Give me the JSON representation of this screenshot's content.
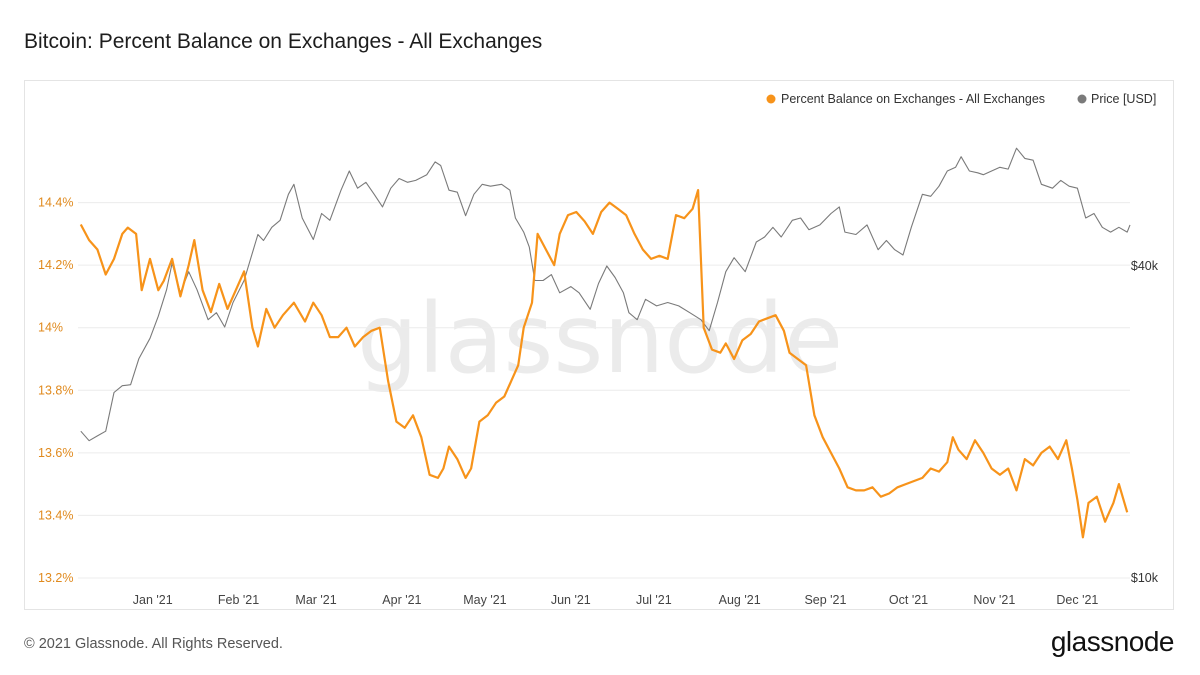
{
  "header": {
    "title": "Bitcoin: Percent Balance on Exchanges - All Exchanges"
  },
  "footer": {
    "copyright": "© 2021 Glassnode. All Rights Reserved.",
    "logo": "glassnode"
  },
  "watermark": "glassnode",
  "colors": {
    "balance": "#f7931a",
    "price": "#7a7a7a",
    "left_axis": "#e08a1e",
    "grid": "#ececec"
  },
  "chart_data": {
    "type": "line",
    "title": "Bitcoin: Percent Balance on Exchanges - All Exchanges",
    "grid": true,
    "legend_position": "top-right",
    "x_ticks": [
      "Jan '21",
      "Feb '21",
      "Mar '21",
      "Apr '21",
      "May '21",
      "Jun '21",
      "Jul '21",
      "Aug '21",
      "Sep '21",
      "Oct '21",
      "Nov '21",
      "Dec '21"
    ],
    "x_range": [
      "2020-12-05",
      "2021-12-20"
    ],
    "y_left": {
      "ticks": [
        "13.2%",
        "13.4%",
        "13.6%",
        "13.8%",
        "14%",
        "14.2%",
        "14.4%"
      ],
      "range": [
        13.2,
        14.6
      ]
    },
    "y_right": {
      "ticks": [
        "$10k",
        "$40k"
      ],
      "scale": "log",
      "range": [
        10000,
        70000
      ]
    },
    "series": [
      {
        "name": "Percent Balance on Exchanges - All Exchanges",
        "axis": "left",
        "points": [
          [
            "2020-12-06",
            14.33
          ],
          [
            "2020-12-09",
            14.28
          ],
          [
            "2020-12-12",
            14.25
          ],
          [
            "2020-12-15",
            14.17
          ],
          [
            "2020-12-18",
            14.22
          ],
          [
            "2020-12-21",
            14.3
          ],
          [
            "2020-12-23",
            14.32
          ],
          [
            "2020-12-26",
            14.3
          ],
          [
            "2020-12-28",
            14.12
          ],
          [
            "2020-12-31",
            14.22
          ],
          [
            "2021-01-03",
            14.12
          ],
          [
            "2021-01-05",
            14.15
          ],
          [
            "2021-01-08",
            14.22
          ],
          [
            "2021-01-11",
            14.1
          ],
          [
            "2021-01-14",
            14.2
          ],
          [
            "2021-01-16",
            14.28
          ],
          [
            "2021-01-19",
            14.12
          ],
          [
            "2021-01-22",
            14.05
          ],
          [
            "2021-01-25",
            14.14
          ],
          [
            "2021-01-28",
            14.06
          ],
          [
            "2021-01-31",
            14.12
          ],
          [
            "2021-02-03",
            14.18
          ],
          [
            "2021-02-06",
            14.0
          ],
          [
            "2021-02-08",
            13.94
          ],
          [
            "2021-02-11",
            14.06
          ],
          [
            "2021-02-14",
            14.0
          ],
          [
            "2021-02-17",
            14.04
          ],
          [
            "2021-02-21",
            14.08
          ],
          [
            "2021-02-25",
            14.02
          ],
          [
            "2021-02-28",
            14.08
          ],
          [
            "2021-03-03",
            14.04
          ],
          [
            "2021-03-06",
            13.97
          ],
          [
            "2021-03-09",
            13.97
          ],
          [
            "2021-03-12",
            14.0
          ],
          [
            "2021-03-15",
            13.94
          ],
          [
            "2021-03-18",
            13.97
          ],
          [
            "2021-03-21",
            13.99
          ],
          [
            "2021-03-24",
            14.0
          ],
          [
            "2021-03-27",
            13.83
          ],
          [
            "2021-03-30",
            13.7
          ],
          [
            "2021-04-02",
            13.68
          ],
          [
            "2021-04-05",
            13.72
          ],
          [
            "2021-04-08",
            13.65
          ],
          [
            "2021-04-11",
            13.53
          ],
          [
            "2021-04-14",
            13.52
          ],
          [
            "2021-04-16",
            13.55
          ],
          [
            "2021-04-18",
            13.62
          ],
          [
            "2021-04-21",
            13.58
          ],
          [
            "2021-04-24",
            13.52
          ],
          [
            "2021-04-26",
            13.55
          ],
          [
            "2021-04-29",
            13.7
          ],
          [
            "2021-05-02",
            13.72
          ],
          [
            "2021-05-05",
            13.76
          ],
          [
            "2021-05-08",
            13.78
          ],
          [
            "2021-05-10",
            13.82
          ],
          [
            "2021-05-13",
            13.88
          ],
          [
            "2021-05-15",
            14.0
          ],
          [
            "2021-05-18",
            14.08
          ],
          [
            "2021-05-20",
            14.3
          ],
          [
            "2021-05-23",
            14.25
          ],
          [
            "2021-05-26",
            14.2
          ],
          [
            "2021-05-28",
            14.3
          ],
          [
            "2021-05-31",
            14.36
          ],
          [
            "2021-06-03",
            14.37
          ],
          [
            "2021-06-06",
            14.34
          ],
          [
            "2021-06-09",
            14.3
          ],
          [
            "2021-06-12",
            14.37
          ],
          [
            "2021-06-15",
            14.4
          ],
          [
            "2021-06-18",
            14.38
          ],
          [
            "2021-06-21",
            14.36
          ],
          [
            "2021-06-24",
            14.3
          ],
          [
            "2021-06-27",
            14.25
          ],
          [
            "2021-06-30",
            14.22
          ],
          [
            "2021-07-03",
            14.23
          ],
          [
            "2021-07-06",
            14.22
          ],
          [
            "2021-07-09",
            14.36
          ],
          [
            "2021-07-12",
            14.35
          ],
          [
            "2021-07-15",
            14.38
          ],
          [
            "2021-07-17",
            14.44
          ],
          [
            "2021-07-19",
            14.0
          ],
          [
            "2021-07-22",
            13.93
          ],
          [
            "2021-07-25",
            13.92
          ],
          [
            "2021-07-27",
            13.95
          ],
          [
            "2021-07-30",
            13.9
          ],
          [
            "2021-08-02",
            13.96
          ],
          [
            "2021-08-05",
            13.98
          ],
          [
            "2021-08-08",
            14.02
          ],
          [
            "2021-08-11",
            14.03
          ],
          [
            "2021-08-14",
            14.04
          ],
          [
            "2021-08-17",
            13.99
          ],
          [
            "2021-08-19",
            13.92
          ],
          [
            "2021-08-22",
            13.9
          ],
          [
            "2021-08-25",
            13.88
          ],
          [
            "2021-08-28",
            13.72
          ],
          [
            "2021-08-31",
            13.65
          ],
          [
            "2021-09-03",
            13.6
          ],
          [
            "2021-09-06",
            13.55
          ],
          [
            "2021-09-09",
            13.49
          ],
          [
            "2021-09-12",
            13.48
          ],
          [
            "2021-09-15",
            13.48
          ],
          [
            "2021-09-18",
            13.49
          ],
          [
            "2021-09-21",
            13.46
          ],
          [
            "2021-09-24",
            13.47
          ],
          [
            "2021-09-27",
            13.49
          ],
          [
            "2021-09-30",
            13.5
          ],
          [
            "2021-10-03",
            13.51
          ],
          [
            "2021-10-06",
            13.52
          ],
          [
            "2021-10-09",
            13.55
          ],
          [
            "2021-10-12",
            13.54
          ],
          [
            "2021-10-15",
            13.57
          ],
          [
            "2021-10-17",
            13.65
          ],
          [
            "2021-10-19",
            13.61
          ],
          [
            "2021-10-22",
            13.58
          ],
          [
            "2021-10-25",
            13.64
          ],
          [
            "2021-10-28",
            13.6
          ],
          [
            "2021-10-31",
            13.55
          ],
          [
            "2021-11-03",
            13.53
          ],
          [
            "2021-11-06",
            13.55
          ],
          [
            "2021-11-09",
            13.48
          ],
          [
            "2021-11-12",
            13.58
          ],
          [
            "2021-11-15",
            13.56
          ],
          [
            "2021-11-18",
            13.6
          ],
          [
            "2021-11-21",
            13.62
          ],
          [
            "2021-11-24",
            13.58
          ],
          [
            "2021-11-27",
            13.64
          ],
          [
            "2021-11-29",
            13.55
          ],
          [
            "2021-12-01",
            13.45
          ],
          [
            "2021-12-03",
            13.33
          ],
          [
            "2021-12-05",
            13.44
          ],
          [
            "2021-12-08",
            13.46
          ],
          [
            "2021-12-11",
            13.38
          ],
          [
            "2021-12-14",
            13.44
          ],
          [
            "2021-12-16",
            13.5
          ],
          [
            "2021-12-19",
            13.41
          ]
        ]
      },
      {
        "name": "Price [USD]",
        "axis": "right",
        "points": [
          [
            "2020-12-06",
            19200
          ],
          [
            "2020-12-09",
            18400
          ],
          [
            "2020-12-12",
            18800
          ],
          [
            "2020-12-15",
            19200
          ],
          [
            "2020-12-18",
            22800
          ],
          [
            "2020-12-21",
            23500
          ],
          [
            "2020-12-24",
            23600
          ],
          [
            "2020-12-27",
            26500
          ],
          [
            "2020-12-31",
            29000
          ],
          [
            "2021-01-03",
            32000
          ],
          [
            "2021-01-06",
            36000
          ],
          [
            "2021-01-08",
            40500
          ],
          [
            "2021-01-11",
            35500
          ],
          [
            "2021-01-14",
            39000
          ],
          [
            "2021-01-17",
            36000
          ],
          [
            "2021-01-21",
            31500
          ],
          [
            "2021-01-24",
            32500
          ],
          [
            "2021-01-27",
            30500
          ],
          [
            "2021-01-30",
            34000
          ],
          [
            "2021-02-03",
            37500
          ],
          [
            "2021-02-08",
            46000
          ],
          [
            "2021-02-10",
            44800
          ],
          [
            "2021-02-13",
            47500
          ],
          [
            "2021-02-16",
            49000
          ],
          [
            "2021-02-19",
            55000
          ],
          [
            "2021-02-21",
            57500
          ],
          [
            "2021-02-24",
            49500
          ],
          [
            "2021-02-28",
            45000
          ],
          [
            "2021-03-03",
            50500
          ],
          [
            "2021-03-06",
            49000
          ],
          [
            "2021-03-10",
            56000
          ],
          [
            "2021-03-13",
            61000
          ],
          [
            "2021-03-16",
            56500
          ],
          [
            "2021-03-19",
            58000
          ],
          [
            "2021-03-22",
            55000
          ],
          [
            "2021-03-25",
            52000
          ],
          [
            "2021-03-28",
            56500
          ],
          [
            "2021-03-31",
            59000
          ],
          [
            "2021-04-03",
            58000
          ],
          [
            "2021-04-06",
            58500
          ],
          [
            "2021-04-10",
            60000
          ],
          [
            "2021-04-13",
            63500
          ],
          [
            "2021-04-15",
            62500
          ],
          [
            "2021-04-18",
            56000
          ],
          [
            "2021-04-21",
            55500
          ],
          [
            "2021-04-24",
            50000
          ],
          [
            "2021-04-27",
            55000
          ],
          [
            "2021-04-30",
            57500
          ],
          [
            "2021-05-03",
            57000
          ],
          [
            "2021-05-07",
            57500
          ],
          [
            "2021-05-10",
            56000
          ],
          [
            "2021-05-12",
            49500
          ],
          [
            "2021-05-15",
            46500
          ],
          [
            "2021-05-17",
            43500
          ],
          [
            "2021-05-19",
            37500
          ],
          [
            "2021-05-22",
            37500
          ],
          [
            "2021-05-25",
            38500
          ],
          [
            "2021-05-28",
            35500
          ],
          [
            "2021-06-01",
            36500
          ],
          [
            "2021-06-04",
            35500
          ],
          [
            "2021-06-08",
            33000
          ],
          [
            "2021-06-11",
            37000
          ],
          [
            "2021-06-14",
            40000
          ],
          [
            "2021-06-17",
            38000
          ],
          [
            "2021-06-20",
            35500
          ],
          [
            "2021-06-22",
            32500
          ],
          [
            "2021-06-25",
            31500
          ],
          [
            "2021-06-28",
            34500
          ],
          [
            "2021-07-02",
            33500
          ],
          [
            "2021-07-06",
            34000
          ],
          [
            "2021-07-10",
            33500
          ],
          [
            "2021-07-14",
            32500
          ],
          [
            "2021-07-18",
            31500
          ],
          [
            "2021-07-21",
            30000
          ],
          [
            "2021-07-24",
            34000
          ],
          [
            "2021-07-27",
            39000
          ],
          [
            "2021-07-30",
            41500
          ],
          [
            "2021-08-03",
            39000
          ],
          [
            "2021-08-07",
            44500
          ],
          [
            "2021-08-10",
            45500
          ],
          [
            "2021-08-13",
            47500
          ],
          [
            "2021-08-16",
            45500
          ],
          [
            "2021-08-20",
            49000
          ],
          [
            "2021-08-23",
            49500
          ],
          [
            "2021-08-26",
            47000
          ],
          [
            "2021-08-30",
            48000
          ],
          [
            "2021-09-03",
            50500
          ],
          [
            "2021-09-06",
            52000
          ],
          [
            "2021-09-08",
            46500
          ],
          [
            "2021-09-12",
            46000
          ],
          [
            "2021-09-16",
            48000
          ],
          [
            "2021-09-20",
            43000
          ],
          [
            "2021-09-23",
            44800
          ],
          [
            "2021-09-26",
            43000
          ],
          [
            "2021-09-29",
            42000
          ],
          [
            "2021-10-02",
            47500
          ],
          [
            "2021-10-06",
            55000
          ],
          [
            "2021-10-09",
            54500
          ],
          [
            "2021-10-12",
            57000
          ],
          [
            "2021-10-15",
            61000
          ],
          [
            "2021-10-18",
            62000
          ],
          [
            "2021-10-20",
            65000
          ],
          [
            "2021-10-23",
            61000
          ],
          [
            "2021-10-26",
            60500
          ],
          [
            "2021-10-28",
            60000
          ],
          [
            "2021-10-31",
            61000
          ],
          [
            "2021-11-03",
            62000
          ],
          [
            "2021-11-06",
            61500
          ],
          [
            "2021-11-09",
            67500
          ],
          [
            "2021-11-12",
            64500
          ],
          [
            "2021-11-15",
            64000
          ],
          [
            "2021-11-18",
            57500
          ],
          [
            "2021-11-22",
            56500
          ],
          [
            "2021-11-25",
            58500
          ],
          [
            "2021-11-28",
            57000
          ],
          [
            "2021-12-01",
            56500
          ],
          [
            "2021-12-04",
            49500
          ],
          [
            "2021-12-07",
            50500
          ],
          [
            "2021-12-10",
            47500
          ],
          [
            "2021-12-13",
            46500
          ],
          [
            "2021-12-16",
            47500
          ],
          [
            "2021-12-19",
            46500
          ],
          [
            "2021-12-20",
            48000
          ]
        ]
      }
    ]
  }
}
